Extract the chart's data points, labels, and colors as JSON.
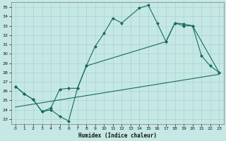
{
  "xlabel": "Humidex (Indice chaleur)",
  "bg_color": "#c5e8e5",
  "line_color": "#1a6b5a",
  "grid_color": "#9ecece",
  "ylim": [
    22.5,
    35.5
  ],
  "xlim": [
    -0.5,
    23.5
  ],
  "yticks": [
    23,
    24,
    25,
    26,
    27,
    28,
    29,
    30,
    31,
    32,
    33,
    34,
    35
  ],
  "xticks": [
    0,
    1,
    2,
    3,
    4,
    5,
    6,
    7,
    8,
    9,
    10,
    11,
    12,
    13,
    14,
    15,
    16,
    17,
    18,
    19,
    20,
    21,
    22,
    23
  ],
  "line1_x": [
    0,
    1,
    2,
    3,
    4,
    5,
    6,
    7,
    8,
    9,
    10,
    11,
    12,
    14,
    15,
    16,
    17,
    18,
    19,
    20,
    21,
    22,
    23
  ],
  "line1_y": [
    26.5,
    25.7,
    25.1,
    23.8,
    24.0,
    23.3,
    22.8,
    26.3,
    28.7,
    30.8,
    32.2,
    33.8,
    33.3,
    34.9,
    35.2,
    33.3,
    31.3,
    33.3,
    33.2,
    33.0,
    29.8,
    28.7,
    28.0
  ],
  "line2_x": [
    0,
    1,
    2,
    3,
    4,
    5,
    6,
    7,
    8,
    17,
    18,
    19,
    20,
    23
  ],
  "line2_y": [
    26.5,
    25.7,
    25.1,
    23.8,
    24.2,
    26.2,
    26.3,
    26.3,
    28.7,
    31.3,
    33.3,
    33.0,
    33.0,
    28.0
  ],
  "line3_x": [
    0,
    23
  ],
  "line3_y": [
    24.3,
    27.8
  ]
}
